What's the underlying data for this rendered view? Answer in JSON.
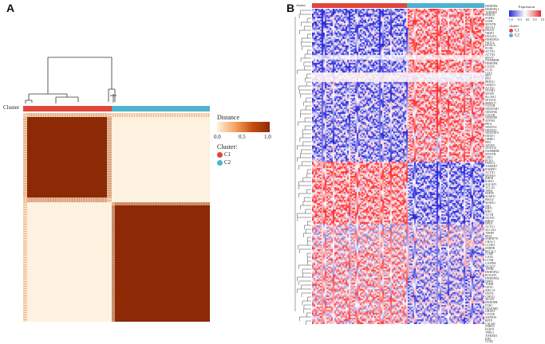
{
  "panel_a": {
    "label": "A",
    "cluster_label": "Cluster",
    "legend": {
      "distance_title": "Distance",
      "distance_ticks": [
        "0.0",
        "0.5",
        "1.0"
      ],
      "cluster_title": "Cluster:",
      "clusters": [
        {
          "name": "C1",
          "color": "#e0463a"
        },
        {
          "name": "C2",
          "color": "#4db3cf"
        }
      ]
    },
    "colors": {
      "low": "#fdf2e0",
      "high": "#8b2a05"
    }
  },
  "panel_b": {
    "label": "B",
    "cluster_label": "cluster",
    "legend": {
      "expression_title": "Expression",
      "expression_ticks": [
        "−1.0",
        "−0.5",
        "0.0",
        "0.5",
        "1.0"
      ],
      "cluster_title": "cluster",
      "clusters": [
        {
          "name": "C1",
          "color": "#e0463a"
        },
        {
          "name": "C2",
          "color": "#4db3cf"
        }
      ]
    },
    "genes": [
      "HNRNPK",
      "HNRNPA1",
      "TARDBP",
      "FBXO9",
      "SAFB2",
      "SAFB",
      "MYH7B",
      "MYO11",
      "DNAJ1",
      "NR2F2",
      "DNAJC5",
      "HNRNPD1",
      "NXT1L",
      "HOXC6",
      "FLNB",
      "ACTN1",
      "ACTN2",
      "MYO7",
      "NAMMDB",
      "HNRNPB",
      "COX5C",
      "CCT2",
      "CLTC",
      "MET",
      "PPIJ",
      "PRDX1",
      "DNMT1",
      "ACTA1",
      "NCOR1",
      "MYH9",
      "SLC8A1",
      "SPTAN1",
      "MRPS17",
      "COX5B",
      "NDUFAB1",
      "NDUFB6",
      "COQ7B",
      "NDUFB8",
      "ATP5F1",
      "PPIA",
      "NDUFS3",
      "NDUFS2",
      "NDUFB10",
      "NDUF1",
      "UHRF1",
      "PPIL",
      "AFTSN",
      "ATXN10",
      "NAMMDB",
      "MYH7B",
      "CDK1",
      "PCNA",
      "PSMC4",
      "ANKRD7",
      "RABEP1",
      "ACTN1",
      "MYH10",
      "RHEB",
      "RAB11",
      "SQGAP1",
      "TCL1D",
      "TPM1",
      "HSP90",
      "SUMO1",
      "PIKO2",
      "MAPK1",
      "AK1",
      "KRT1",
      "RHO",
      "ACTB",
      "NUTF2",
      "RHOA",
      "DPD1",
      "ACTG1",
      "SLC4A2",
      "TPMP1",
      "PFN1",
      "SNRNP70",
      "CHAC1",
      "CCND1",
      "SNRPB",
      "BCL2L1",
      "CTMP",
      "GATA",
      "CCNB",
      "GAPDH",
      "NCALP",
      "TPPRL",
      "HNRNPA2",
      "RCKAP1",
      "HNRNPD2",
      "DPPN",
      "TUBB",
      "NDVL",
      "SMC1A",
      "DNTN",
      "CNPY2",
      "SKAP1",
      "HNRNPB",
      "FXR1",
      "NOSTMD",
      "UBXP4",
      "COX5E",
      "SMPD10",
      "BPTF",
      "CALM1",
      "ZNRF2",
      "FABT3",
      "TPRL3",
      "ANKRD1",
      "EIF1",
      "CTSD"
    ]
  }
}
